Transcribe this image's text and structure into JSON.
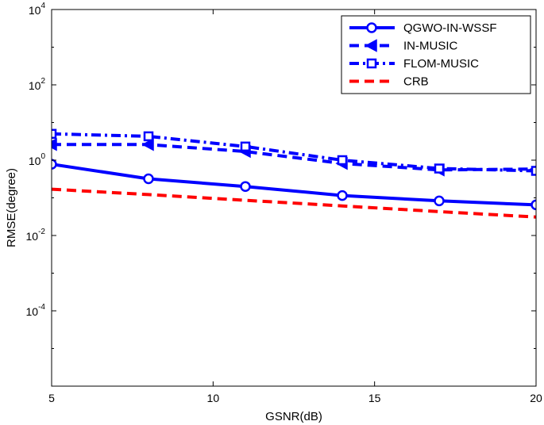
{
  "chart_data": {
    "type": "line",
    "title": "",
    "xlabel": "GSNR(dB)",
    "ylabel": "RMSE(degree)",
    "xlim": [
      5,
      20
    ],
    "ylim_log10": [
      -6,
      4
    ],
    "y_scale": "log",
    "x_ticks": [
      5,
      10,
      15,
      20
    ],
    "y_ticks": [
      {
        "base": "10",
        "exp": "4"
      },
      {
        "base": "10",
        "exp": "2"
      },
      {
        "base": "10",
        "exp": "0"
      },
      {
        "base": "10",
        "exp": "-2"
      },
      {
        "base": "10",
        "exp": "-4"
      }
    ],
    "y_tick_values_log10": [
      4,
      2,
      0,
      -2,
      -4
    ],
    "grid": false,
    "legend_position": "top-right",
    "x": [
      5,
      8,
      11,
      14,
      17,
      20
    ],
    "series": [
      {
        "name": "QGWO-IN-WSSF",
        "values": [
          0.78,
          0.32,
          0.2,
          0.115,
          0.083,
          0.065
        ],
        "color": "#0000ff",
        "style": "solid",
        "marker": "circle"
      },
      {
        "name": "IN-MUSIC",
        "values": [
          2.6,
          2.6,
          1.7,
          0.82,
          0.55,
          0.58
        ],
        "color": "#0000ff",
        "style": "dashed",
        "marker": "triangle-left"
      },
      {
        "name": "FLOM-MUSIC",
        "values": [
          5.0,
          4.3,
          2.3,
          1.0,
          0.6,
          0.52
        ],
        "color": "#0000ff",
        "style": "dashdot",
        "marker": "square"
      },
      {
        "name": "CRB",
        "values": [
          0.17,
          0.122,
          0.086,
          0.061,
          0.043,
          0.031
        ],
        "color": "#ff0000",
        "style": "dashed",
        "marker": "none"
      }
    ]
  }
}
